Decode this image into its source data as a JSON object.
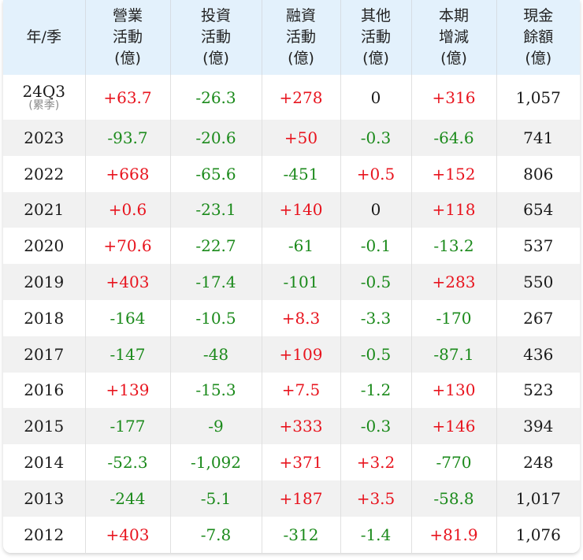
{
  "table": {
    "headers": [
      {
        "lines": [
          "年/季"
        ]
      },
      {
        "lines": [
          "營業",
          "活動",
          "(億)"
        ]
      },
      {
        "lines": [
          "投資",
          "活動",
          "(億)"
        ]
      },
      {
        "lines": [
          "融資",
          "活動",
          "(億)"
        ]
      },
      {
        "lines": [
          "其他",
          "活動",
          "(億)"
        ]
      },
      {
        "lines": [
          "本期",
          "增減",
          "(億)"
        ]
      },
      {
        "lines": [
          "現金",
          "餘額",
          "(億)"
        ]
      }
    ],
    "colors": {
      "header_bg": "#e3f1fc",
      "positive": "#e8141e",
      "negative": "#1b8a1b",
      "neutral": "#1a1a1a",
      "row_alt": "#f1f1f1"
    },
    "rows": [
      {
        "period": "24Q3",
        "period_note": "(累季)",
        "operating": "+63.7",
        "investing": "-26.3",
        "financing": "+278",
        "other": "0",
        "net_change": "+316",
        "cash_balance": "1,057"
      },
      {
        "period": "2023",
        "operating": "-93.7",
        "investing": "-20.6",
        "financing": "+50",
        "other": "-0.3",
        "net_change": "-64.6",
        "cash_balance": "741"
      },
      {
        "period": "2022",
        "operating": "+668",
        "investing": "-65.6",
        "financing": "-451",
        "other": "+0.5",
        "net_change": "+152",
        "cash_balance": "806"
      },
      {
        "period": "2021",
        "operating": "+0.6",
        "investing": "-23.1",
        "financing": "+140",
        "other": "0",
        "net_change": "+118",
        "cash_balance": "654"
      },
      {
        "period": "2020",
        "operating": "+70.6",
        "investing": "-22.7",
        "financing": "-61",
        "other": "-0.1",
        "net_change": "-13.2",
        "cash_balance": "537"
      },
      {
        "period": "2019",
        "operating": "+403",
        "investing": "-17.4",
        "financing": "-101",
        "other": "-0.5",
        "net_change": "+283",
        "cash_balance": "550"
      },
      {
        "period": "2018",
        "operating": "-164",
        "investing": "-10.5",
        "financing": "+8.3",
        "other": "-3.3",
        "net_change": "-170",
        "cash_balance": "267"
      },
      {
        "period": "2017",
        "operating": "-147",
        "investing": "-48",
        "financing": "+109",
        "other": "-0.5",
        "net_change": "-87.1",
        "cash_balance": "436"
      },
      {
        "period": "2016",
        "operating": "+139",
        "investing": "-15.3",
        "financing": "+7.5",
        "other": "-1.2",
        "net_change": "+130",
        "cash_balance": "523"
      },
      {
        "period": "2015",
        "operating": "-177",
        "investing": "-9",
        "financing": "+333",
        "other": "-0.3",
        "net_change": "+146",
        "cash_balance": "394"
      },
      {
        "period": "2014",
        "operating": "-52.3",
        "investing": "-1,092",
        "financing": "+371",
        "other": "+3.2",
        "net_change": "-770",
        "cash_balance": "248"
      },
      {
        "period": "2013",
        "operating": "-244",
        "investing": "-5.1",
        "financing": "+187",
        "other": "+3.5",
        "net_change": "-58.8",
        "cash_balance": "1,017"
      },
      {
        "period": "2012",
        "operating": "+403",
        "investing": "-7.8",
        "financing": "-312",
        "other": "-1.4",
        "net_change": "+81.9",
        "cash_balance": "1,076"
      }
    ]
  }
}
